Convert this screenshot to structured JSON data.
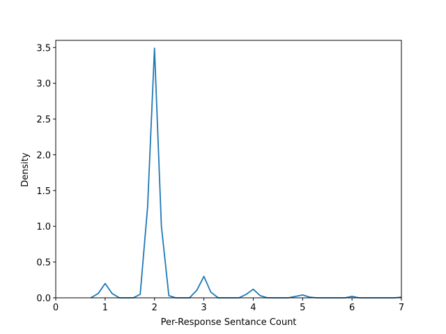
{
  "chart_data": {
    "type": "line",
    "title": "",
    "xlabel": "Per-Response Sentance Count",
    "ylabel": "Density",
    "xlim": [
      0,
      7
    ],
    "ylim": [
      0,
      3.6
    ],
    "xticks": [
      0,
      1,
      2,
      3,
      4,
      5,
      6,
      7
    ],
    "yticks": [
      0.0,
      0.5,
      1.0,
      1.5,
      2.0,
      2.5,
      3.0,
      3.5
    ],
    "grid": false,
    "legend": "none",
    "series": [
      {
        "color": "#1f77b4",
        "x": [
          0.71,
          0.86,
          1.0,
          1.14,
          1.29,
          1.43,
          1.57,
          1.71,
          1.86,
          2.0,
          2.14,
          2.29,
          2.43,
          2.57,
          2.71,
          2.86,
          3.0,
          3.14,
          3.29,
          3.43,
          3.57,
          3.71,
          3.86,
          4.0,
          4.14,
          4.29,
          4.43,
          4.57,
          4.71,
          4.86,
          5.0,
          5.14,
          5.29,
          5.43,
          5.57,
          5.71,
          5.86,
          6.0,
          6.14,
          6.29,
          6.43,
          6.57,
          6.71,
          6.86,
          7.0
        ],
        "y": [
          0.0,
          0.06,
          0.2,
          0.06,
          0.0,
          0.0,
          0.0,
          0.05,
          1.27,
          3.49,
          1.0,
          0.03,
          0.0,
          0.0,
          0.0,
          0.11,
          0.3,
          0.08,
          0.0,
          0.0,
          0.0,
          0.0,
          0.05,
          0.12,
          0.03,
          0.0,
          0.0,
          0.0,
          0.0,
          0.02,
          0.04,
          0.01,
          0.0,
          0.0,
          0.0,
          0.0,
          0.0,
          0.02,
          0.0,
          0.0,
          0.0,
          0.0,
          0.0,
          0.0,
          0.01
        ]
      }
    ]
  }
}
